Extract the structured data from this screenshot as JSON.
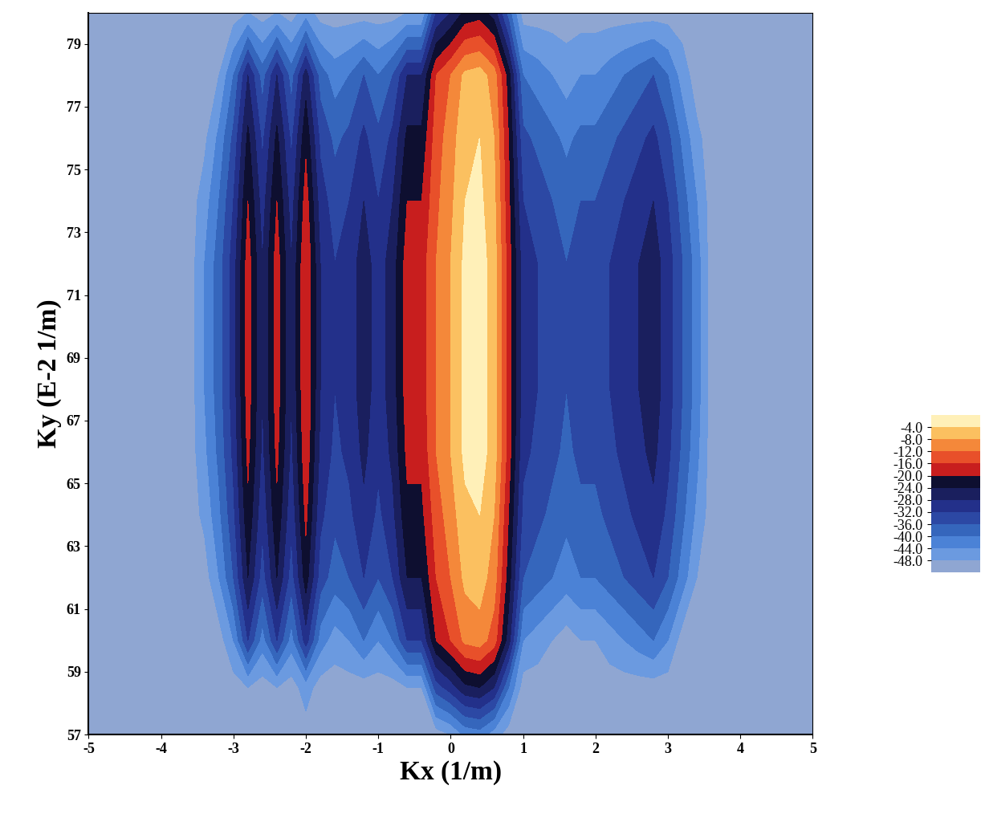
{
  "chart_data": {
    "type": "contour",
    "x_label": "Kx (1/m)",
    "y_label": "Ky (E-2 1/m)",
    "xlim": [
      -5,
      5
    ],
    "ylim": [
      57,
      80
    ],
    "xticks": [
      -5,
      -4,
      -3,
      -2,
      -1,
      0,
      1,
      2,
      3,
      4,
      5
    ],
    "yticks": [
      57,
      59,
      61,
      63,
      65,
      67,
      69,
      71,
      73,
      75,
      77,
      79
    ],
    "x": [
      -5,
      -4,
      -3.6,
      -3.4,
      -3.2,
      -3.0,
      -2.8,
      -2.6,
      -2.4,
      -2.2,
      -2.0,
      -1.8,
      -1.6,
      -1.4,
      -1.2,
      -1.0,
      -0.8,
      -0.6,
      -0.4,
      -0.2,
      0.0,
      0.2,
      0.4,
      0.6,
      0.8,
      1.0,
      1.2,
      1.4,
      1.6,
      1.8,
      2.0,
      2.2,
      2.4,
      2.6,
      2.8,
      3.0,
      3.2,
      3.4,
      3.6,
      4,
      5
    ],
    "y": [
      57,
      58.5,
      60,
      62,
      64,
      66,
      68,
      70,
      72,
      74,
      76,
      78,
      80
    ],
    "z": [
      [
        -50,
        -50,
        -50,
        -50,
        -50,
        -50,
        -50,
        -50,
        -50,
        -50,
        -50,
        -50,
        -50,
        -50,
        -50,
        -50,
        -50,
        -50,
        -50,
        -50,
        -48,
        -43,
        -42,
        -46,
        -50,
        -50,
        -50,
        -50,
        -50,
        -50,
        -50,
        -50,
        -50,
        -50,
        -50,
        -50,
        -50,
        -50,
        -50,
        -50,
        -50
      ],
      [
        -50,
        -50,
        -50,
        -50,
        -50,
        -50,
        -48,
        -50,
        -48,
        -50,
        -46,
        -50,
        -50,
        -50,
        -50,
        -50,
        -50,
        -48,
        -48,
        -34,
        -30,
        -25,
        -24,
        -28,
        -40,
        -50,
        -50,
        -50,
        -50,
        -50,
        -50,
        -50,
        -50,
        -50,
        -50,
        -50,
        -50,
        -50,
        -50,
        -50,
        -50
      ],
      [
        -50,
        -50,
        -50,
        -50,
        -50,
        -44,
        -32,
        -42,
        -32,
        -42,
        -30,
        -42,
        -46,
        -44,
        -40,
        -44,
        -40,
        -32,
        -32,
        -20,
        -16,
        -11,
        -10,
        -14,
        -26,
        -44,
        -46,
        -48,
        -50,
        -48,
        -48,
        -46,
        -44,
        -42,
        -40,
        -44,
        -50,
        -50,
        -50,
        -50,
        -50
      ],
      [
        -50,
        -50,
        -50,
        -50,
        -44,
        -36,
        -24,
        -34,
        -24,
        -34,
        -22,
        -34,
        -38,
        -36,
        -32,
        -36,
        -32,
        -24,
        -24,
        -16,
        -12,
        -7,
        -6,
        -10,
        -22,
        -36,
        -38,
        -40,
        -42,
        -40,
        -40,
        -38,
        -36,
        -34,
        -32,
        -36,
        -42,
        -48,
        -50,
        -50,
        -50
      ],
      [
        -50,
        -50,
        -50,
        -47,
        -41,
        -33,
        -21,
        -31,
        -21,
        -31,
        -19,
        -31,
        -35,
        -33,
        -29,
        -33,
        -29,
        -21,
        -21,
        -14,
        -10,
        -5,
        -4,
        -8,
        -20,
        -33,
        -35,
        -37,
        -39,
        -37,
        -37,
        -35,
        -33,
        -31,
        -29,
        -33,
        -39,
        -45,
        -50,
        -50,
        -50
      ],
      [
        -50,
        -50,
        -50,
        -45,
        -39,
        -31,
        -19,
        -29,
        -19,
        -29,
        -17,
        -29,
        -33,
        -31,
        -27,
        -31,
        -27,
        -19,
        -19,
        -12,
        -8,
        -3,
        -2,
        -6,
        -18,
        -31,
        -33,
        -35,
        -37,
        -35,
        -35,
        -33,
        -31,
        -29,
        -27,
        -31,
        -37,
        -43,
        -50,
        -50,
        -50
      ],
      [
        -50,
        -50,
        -50,
        -44,
        -38,
        -30,
        -18,
        -28,
        -18,
        -28,
        -16,
        -28,
        -32,
        -30,
        -26,
        -30,
        -26,
        -18,
        -18,
        -12,
        -8,
        -3,
        -2,
        -6,
        -18,
        -30,
        -32,
        -34,
        -36,
        -34,
        -34,
        -32,
        -30,
        -28,
        -26,
        -30,
        -36,
        -42,
        -50,
        -50,
        -50
      ],
      [
        -50,
        -50,
        -50,
        -44,
        -38,
        -30,
        -18,
        -28,
        -18,
        -28,
        -16,
        -28,
        -32,
        -30,
        -26,
        -30,
        -26,
        -18,
        -18,
        -12,
        -8,
        -3,
        -2,
        -6,
        -18,
        -30,
        -32,
        -34,
        -36,
        -34,
        -34,
        -32,
        -30,
        -28,
        -26,
        -30,
        -36,
        -42,
        -50,
        -50,
        -50
      ],
      [
        -50,
        -50,
        -50,
        -44,
        -38,
        -30,
        -18,
        -28,
        -18,
        -28,
        -16,
        -28,
        -32,
        -30,
        -26,
        -30,
        -26,
        -18,
        -18,
        -12,
        -8,
        -3,
        -2,
        -6,
        -18,
        -30,
        -32,
        -34,
        -36,
        -34,
        -34,
        -32,
        -30,
        -28,
        -26,
        -30,
        -36,
        -42,
        -50,
        -50,
        -50
      ],
      [
        -50,
        -50,
        -50,
        -46,
        -40,
        -32,
        -20,
        -30,
        -20,
        -30,
        -18,
        -30,
        -34,
        -32,
        -28,
        -32,
        -28,
        -20,
        -20,
        -13,
        -9,
        -4,
        -3,
        -7,
        -19,
        -32,
        -34,
        -36,
        -38,
        -36,
        -36,
        -34,
        -32,
        -30,
        -28,
        -32,
        -38,
        -44,
        -50,
        -50,
        -50
      ],
      [
        -50,
        -50,
        -50,
        -49,
        -43,
        -35,
        -23,
        -33,
        -23,
        -33,
        -21,
        -33,
        -37,
        -35,
        -31,
        -35,
        -31,
        -23,
        -23,
        -14,
        -10,
        -5,
        -4,
        -8,
        -20,
        -35,
        -37,
        -39,
        -41,
        -39,
        -39,
        -37,
        -35,
        -33,
        -31,
        -35,
        -41,
        -47,
        -50,
        -50,
        -50
      ],
      [
        -50,
        -50,
        -50,
        -50,
        -48,
        -40,
        -28,
        -38,
        -28,
        -38,
        -26,
        -38,
        -42,
        -40,
        -36,
        -40,
        -36,
        -28,
        -28,
        -16,
        -12,
        -7,
        -6,
        -10,
        -22,
        -40,
        -42,
        -44,
        -46,
        -44,
        -44,
        -42,
        -40,
        -38,
        -36,
        -40,
        -46,
        -50,
        -50,
        -50,
        -50
      ],
      [
        -50,
        -50,
        -50,
        -50,
        -50,
        -50,
        -48,
        -50,
        -48,
        -50,
        -46,
        -50,
        -50,
        -50,
        -50,
        -50,
        -50,
        -48,
        -48,
        -32,
        -28,
        -23,
        -22,
        -26,
        -38,
        -50,
        -50,
        -50,
        -50,
        -50,
        -50,
        -50,
        -50,
        -50,
        -50,
        -50,
        -50,
        -50,
        -50,
        -50,
        -50
      ]
    ],
    "colorbar": {
      "levels": [
        -52,
        -48,
        -44,
        -40,
        -36,
        -32,
        -28,
        -24,
        -20,
        -16,
        -12,
        -8,
        -4,
        0
      ],
      "ticks": [
        {
          "value": -4,
          "label": "-4.0"
        },
        {
          "value": -8,
          "label": "-8.0"
        },
        {
          "value": -12,
          "label": "-12.0"
        },
        {
          "value": -16,
          "label": "-16.0"
        },
        {
          "value": -20,
          "label": "-20.0"
        },
        {
          "value": -24,
          "label": "-24.0"
        },
        {
          "value": -28,
          "label": "-28.0"
        },
        {
          "value": -32,
          "label": "-32.0"
        },
        {
          "value": -36,
          "label": "-36.0"
        },
        {
          "value": -40,
          "label": "-40.0"
        },
        {
          "value": -44,
          "label": "-44.0"
        },
        {
          "value": -48,
          "label": "-48.0"
        }
      ],
      "colors": [
        "#8fa6d2",
        "#6b9ae0",
        "#4b82d6",
        "#3566bc",
        "#2c48a4",
        "#23308a",
        "#1a1f5e",
        "#0e0f30",
        "#c81e1e",
        "#e8502a",
        "#f4883a",
        "#fbc060",
        "#fff0b8"
      ]
    }
  }
}
